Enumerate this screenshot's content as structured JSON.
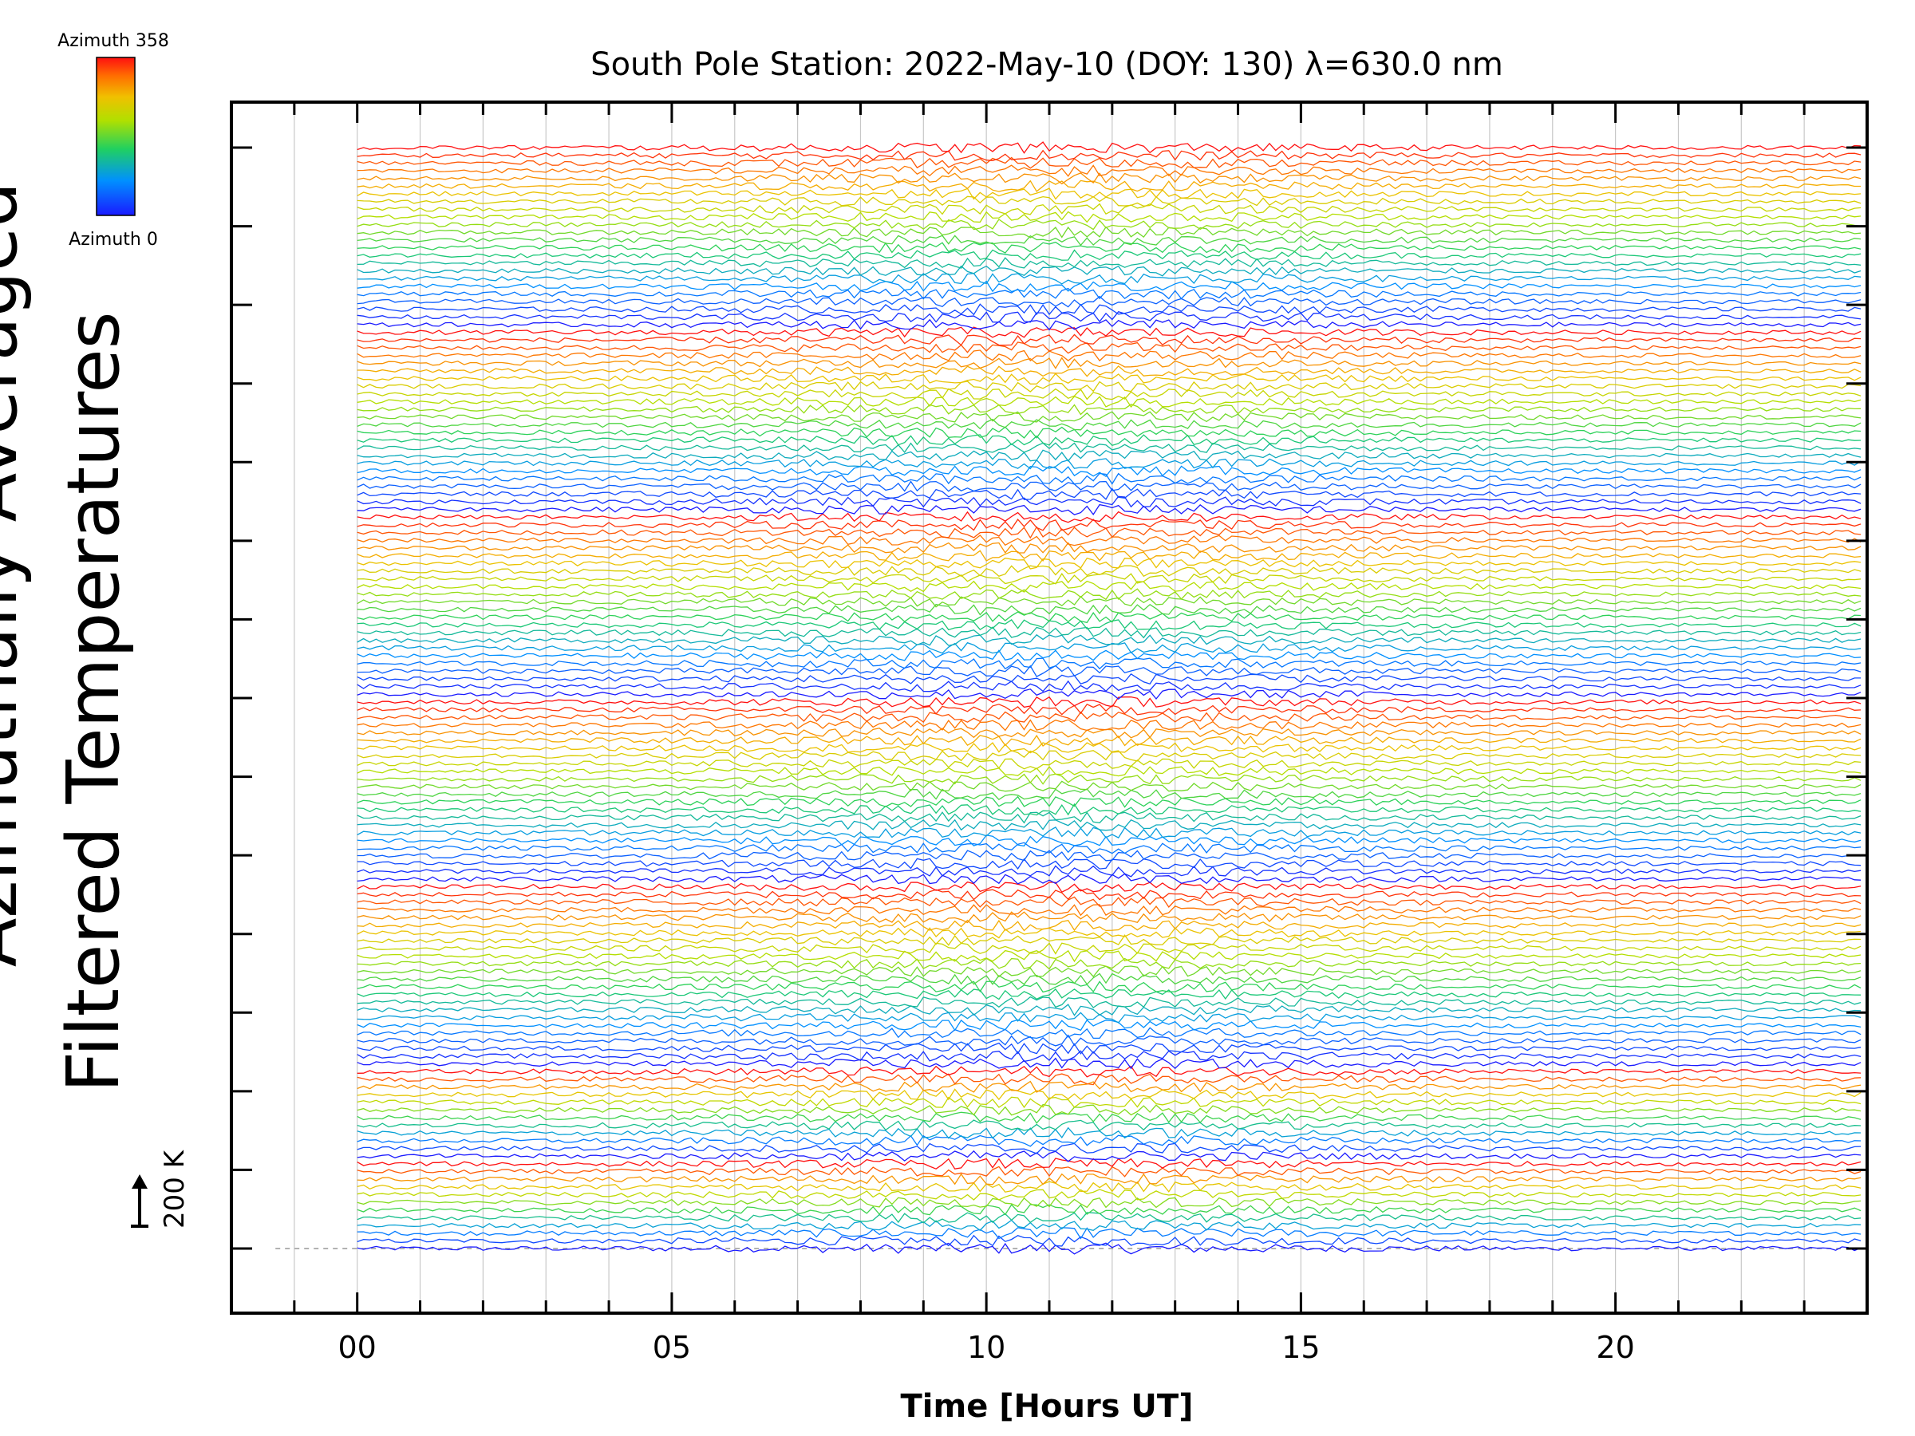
{
  "chart_data": {
    "type": "line",
    "title": "South Pole Station: 2022-May-10 (DOY: 130) λ=630.0 nm",
    "xlabel": "Time [Hours UT]",
    "ylabel": "Filtered Temperatures",
    "xlim": [
      -2,
      24
    ],
    "x_ticks": [
      "00",
      "05",
      "10",
      "15",
      "20"
    ],
    "x_tick_values": [
      0,
      5,
      10,
      15,
      20
    ],
    "x_minor_step_hours": 1,
    "data_start_hour": 0,
    "data_end_hour": 23.9,
    "sample_step_hours": 0.1,
    "num_traces": 144,
    "trace_offset_k": 66.7,
    "num_groups": 7,
    "group_sizes": [
      24,
      24,
      24,
      24,
      24,
      12,
      12
    ],
    "y_major_tick_count": 15,
    "scale_bar": {
      "label": "200 K",
      "value_k": 200
    },
    "colorbar": {
      "top_label": "Azimuth 358",
      "bottom_label": "Azimuth 0",
      "azimuth_range": [
        0,
        358
      ],
      "colormap": "rainbow"
    },
    "colors": {
      "axis": "#000000",
      "grid": "#c8c8c8",
      "baseline": "#999999",
      "background": "#ffffff"
    }
  }
}
